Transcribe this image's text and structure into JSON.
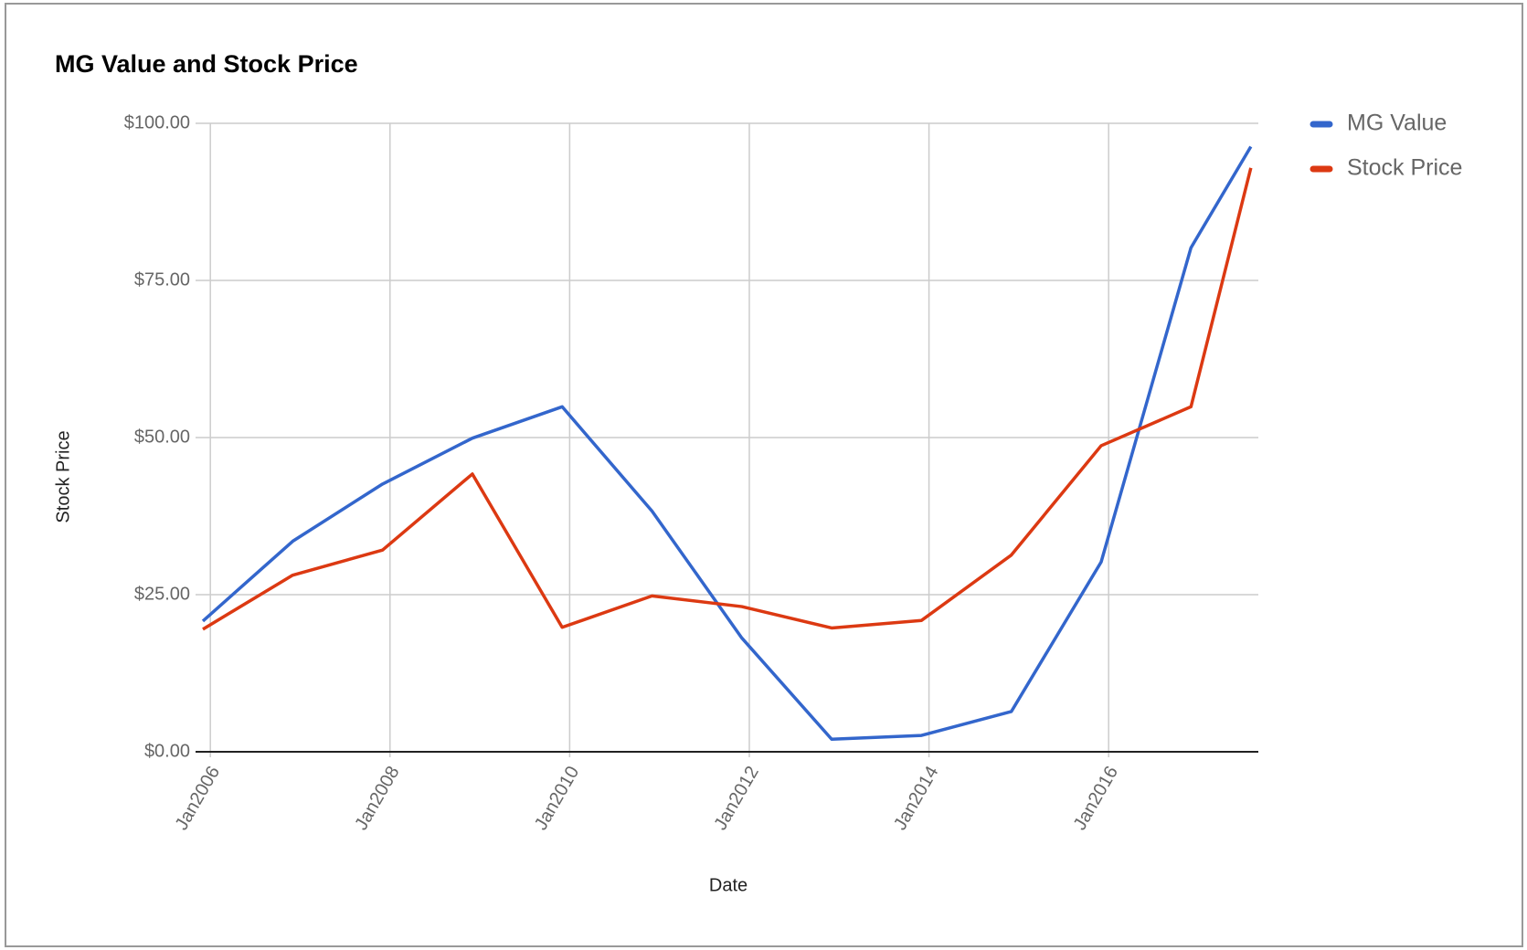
{
  "chart_data": {
    "type": "line",
    "title": "MG Value and Stock Price",
    "x_label": "Date",
    "y_label": "Stock Price",
    "x": [
      "2005-12",
      "2006-12",
      "2007-12",
      "2008-12",
      "2009-12",
      "2010-12",
      "2011-12",
      "2012-12",
      "2013-12",
      "2014-12",
      "2015-12",
      "2016-12",
      "2017-08"
    ],
    "series": [
      {
        "name": "MG Value",
        "color": "#3366cc",
        "values": [
          20.8,
          33.5,
          42.6,
          49.9,
          54.9,
          38.3,
          18.1,
          2.0,
          2.6,
          6.4,
          30.2,
          80.2,
          96.3
        ]
      },
      {
        "name": "Stock Price",
        "color": "#dc3912",
        "values": [
          19.5,
          28.1,
          32.1,
          44.2,
          19.8,
          24.8,
          23.1,
          19.7,
          20.9,
          31.3,
          48.7,
          54.9,
          92.9
        ]
      }
    ],
    "xlim": [
      "2005-12",
      "2017-09"
    ],
    "xticks": [
      {
        "value": "2006-01",
        "label": "Jan2006"
      },
      {
        "value": "2008-01",
        "label": "Jan2008"
      },
      {
        "value": "2010-01",
        "label": "Jan2010"
      },
      {
        "value": "2012-01",
        "label": "Jan2012"
      },
      {
        "value": "2014-01",
        "label": "Jan2014"
      },
      {
        "value": "2016-01",
        "label": "Jan2016"
      }
    ],
    "ylim": [
      0,
      100
    ],
    "yticks": [
      {
        "value": 0,
        "label": "$0.00"
      },
      {
        "value": 25,
        "label": "$25.00"
      },
      {
        "value": 50,
        "label": "$50.00"
      },
      {
        "value": 75,
        "label": "$75.00"
      },
      {
        "value": 100,
        "label": "$100.00"
      }
    ],
    "grid": true,
    "legend": "right"
  }
}
